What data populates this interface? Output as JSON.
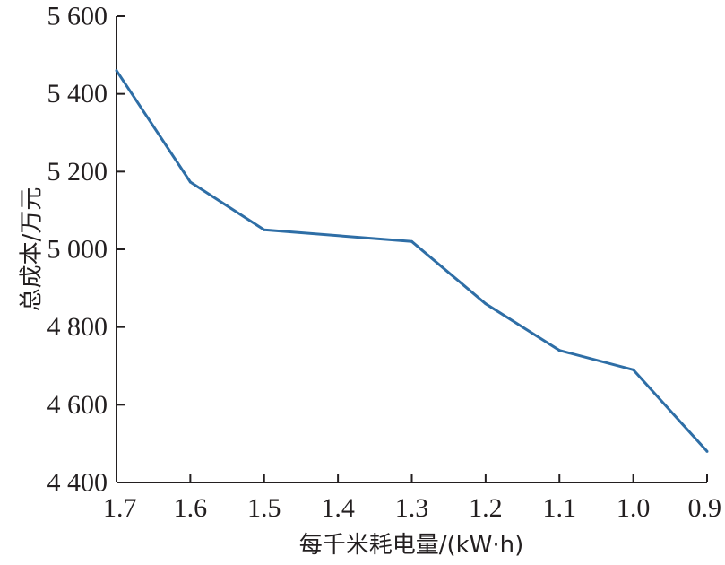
{
  "chart_data": {
    "type": "line",
    "xlabel": "每千米耗电量/(kW·h)",
    "ylabel": "总成本/万元",
    "x_ticks": [
      "1.7",
      "1.6",
      "1.5",
      "1.4",
      "1.3",
      "1.2",
      "1.1",
      "1.0",
      "0.9"
    ],
    "y_ticks": [
      "4 400",
      "4 600",
      "4 800",
      "5 000",
      "5 200",
      "5 400",
      "5 600"
    ],
    "xlim": [
      1.7,
      0.9
    ],
    "ylim": [
      4400,
      5600
    ],
    "x_reversed": true,
    "grid": false,
    "series": [
      {
        "color": "#2e6ea6",
        "x": [
          1.7,
          1.6,
          1.5,
          1.3,
          1.2,
          1.1,
          1.0,
          0.9
        ],
        "values": [
          5460,
          5173,
          5050,
          5020,
          4860,
          4740,
          4690,
          4480
        ]
      }
    ]
  }
}
